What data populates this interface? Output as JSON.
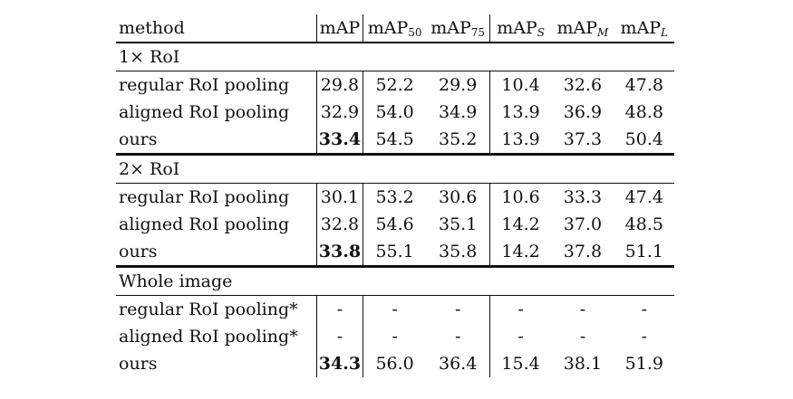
{
  "header": {
    "method": "method",
    "map": "mAP",
    "map50": {
      "base": "mAP",
      "sub": "50"
    },
    "map75": {
      "base": "mAP",
      "sub": "75"
    },
    "maps": {
      "base": "mAP",
      "sub": "S"
    },
    "mapm": {
      "base": "mAP",
      "sub": "M"
    },
    "mapl": {
      "base": "mAP",
      "sub": "L"
    }
  },
  "groups": [
    {
      "title": "1× RoI",
      "rows": [
        {
          "method": "regular RoI pooling",
          "v": [
            "29.8",
            "52.2",
            "29.9",
            "10.4",
            "32.6",
            "47.8"
          ]
        },
        {
          "method": "aligned RoI pooling",
          "v": [
            "32.9",
            "54.0",
            "34.9",
            "13.9",
            "36.9",
            "48.8"
          ]
        },
        {
          "method": "ours",
          "v": [
            "33.4",
            "54.5",
            "35.2",
            "13.9",
            "37.3",
            "50.4"
          ]
        }
      ]
    },
    {
      "title": "2× RoI",
      "rows": [
        {
          "method": "regular RoI pooling",
          "v": [
            "30.1",
            "53.2",
            "30.6",
            "10.6",
            "33.3",
            "47.4"
          ]
        },
        {
          "method": "aligned RoI pooling",
          "v": [
            "32.8",
            "54.6",
            "35.1",
            "14.2",
            "37.0",
            "48.5"
          ]
        },
        {
          "method": "ours",
          "v": [
            "33.8",
            "55.1",
            "35.8",
            "14.2",
            "37.8",
            "51.1"
          ]
        }
      ]
    },
    {
      "title": "Whole image",
      "rows": [
        {
          "method": "regular RoI pooling*",
          "v": [
            "-",
            "-",
            "-",
            "-",
            "-",
            "-"
          ]
        },
        {
          "method": "aligned RoI pooling*",
          "v": [
            "-",
            "-",
            "-",
            "-",
            "-",
            "-"
          ]
        },
        {
          "method": "ours",
          "v": [
            "34.3",
            "56.0",
            "36.4",
            "15.4",
            "38.1",
            "51.9"
          ]
        }
      ]
    }
  ]
}
